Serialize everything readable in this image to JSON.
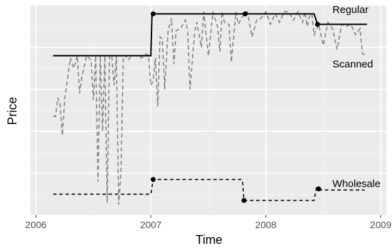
{
  "chart_data": {
    "type": "line",
    "title": "",
    "xlabel": "Time",
    "ylabel": "Price",
    "xlim": [
      2005.95,
      2009.05
    ],
    "ylim": [
      0,
      100
    ],
    "x_ticks": [
      2006,
      2007,
      2008,
      2009
    ],
    "x_tick_labels": [
      "2006",
      "2007",
      "2008",
      "2009"
    ],
    "y_ticks": [],
    "grid": true,
    "legend": "none",
    "background": "#ebebeb",
    "series": [
      {
        "name": "Regular",
        "style": "solid",
        "color": "#000000",
        "x": [
          2006.15,
          2007.0,
          2007.01,
          2007.82,
          2008.42,
          2008.45,
          2008.88
        ],
        "y": [
          76,
          76,
          96,
          96,
          96,
          91,
          91
        ],
        "points": [
          [
            2007.02,
            96
          ],
          [
            2007.82,
            96
          ],
          [
            2008.45,
            91
          ]
        ]
      },
      {
        "name": "Scanned",
        "style": "dashed",
        "color": "#808080",
        "x": [
          2006.15,
          2006.17,
          2006.19,
          2006.21,
          2006.23,
          2006.25,
          2006.3,
          2006.33,
          2006.36,
          2006.38,
          2006.4,
          2006.44,
          2006.48,
          2006.5,
          2006.52,
          2006.54,
          2006.56,
          2006.58,
          2006.6,
          2006.62,
          2006.64,
          2006.66,
          2006.68,
          2006.7,
          2006.72,
          2006.74,
          2006.76,
          2006.78,
          2006.8,
          2006.84,
          2006.88,
          2006.92,
          2006.96,
          2006.98,
          2007.0,
          2007.02,
          2007.04,
          2007.06,
          2007.08,
          2007.1,
          2007.12,
          2007.15,
          2007.18,
          2007.2,
          2007.22,
          2007.26,
          2007.3,
          2007.32,
          2007.34,
          2007.38,
          2007.4,
          2007.44,
          2007.46,
          2007.5,
          2007.54,
          2007.58,
          2007.6,
          2007.62,
          2007.64,
          2007.68,
          2007.7,
          2007.74,
          2007.76,
          2007.8,
          2007.84,
          2007.88,
          2007.92,
          2007.96,
          2008.0,
          2008.04,
          2008.08,
          2008.12,
          2008.16,
          2008.2,
          2008.24,
          2008.28,
          2008.32,
          2008.34,
          2008.36,
          2008.38,
          2008.4,
          2008.42,
          2008.46,
          2008.5,
          2008.54,
          2008.58,
          2008.62,
          2008.66,
          2008.7,
          2008.74,
          2008.78,
          2008.82,
          2008.84,
          2008.88
        ],
        "y": [
          47,
          47,
          56,
          53,
          38,
          55,
          75,
          70,
          76,
          58,
          66,
          76,
          74,
          55,
          76,
          16,
          76,
          40,
          76,
          6,
          76,
          76,
          62,
          76,
          5,
          20,
          76,
          76,
          74,
          76,
          76,
          75,
          77,
          76,
          62,
          64,
          75,
          52,
          85,
          84,
          60,
          88,
          94,
          72,
          88,
          89,
          93,
          88,
          60,
          87,
          92,
          80,
          97,
          76,
          97,
          90,
          78,
          97,
          92,
          91,
          73,
          97,
          91,
          95,
          97,
          85,
          93,
          94,
          97,
          91,
          96,
          92,
          97,
          97,
          93,
          97,
          92,
          97,
          90,
          95,
          96,
          86,
          91,
          81,
          92,
          89,
          79,
          91,
          90,
          91,
          86,
          89,
          77,
          76
        ]
      },
      {
        "name": "Wholesale",
        "style": "dashed",
        "color": "#000000",
        "x": [
          2006.15,
          2007.0,
          2007.02,
          2007.79,
          2007.8,
          2007.81,
          2008.42,
          2008.44,
          2008.46,
          2008.86
        ],
        "y": [
          10,
          10,
          17,
          17,
          15,
          7,
          7,
          13,
          12,
          12
        ],
        "points": [
          [
            2007.02,
            17
          ],
          [
            2007.81,
            7
          ],
          [
            2008.46,
            12.5
          ]
        ]
      }
    ],
    "annotations": [
      "Regular",
      "Scanned",
      "Wholesale"
    ]
  }
}
